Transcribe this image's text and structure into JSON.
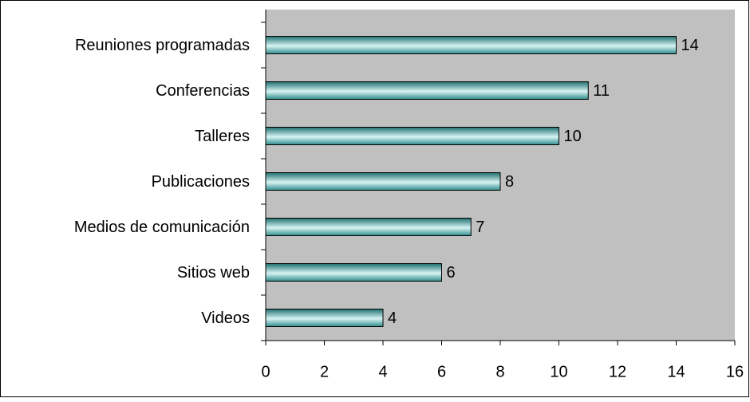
{
  "chart_data": {
    "type": "bar",
    "orientation": "horizontal",
    "categories": [
      "Reuniones programadas",
      "Conferencias",
      "Talleres",
      "Publicaciones",
      "Medios de comunicación",
      "Sitios web",
      "Videos"
    ],
    "values": [
      14,
      11,
      10,
      8,
      7,
      6,
      4
    ],
    "color": "#2e8b8b",
    "plot_background": "#c0c0c0",
    "xlim": [
      0,
      16
    ],
    "xticks": [
      0,
      2,
      4,
      6,
      8,
      10,
      12,
      14,
      16
    ]
  }
}
